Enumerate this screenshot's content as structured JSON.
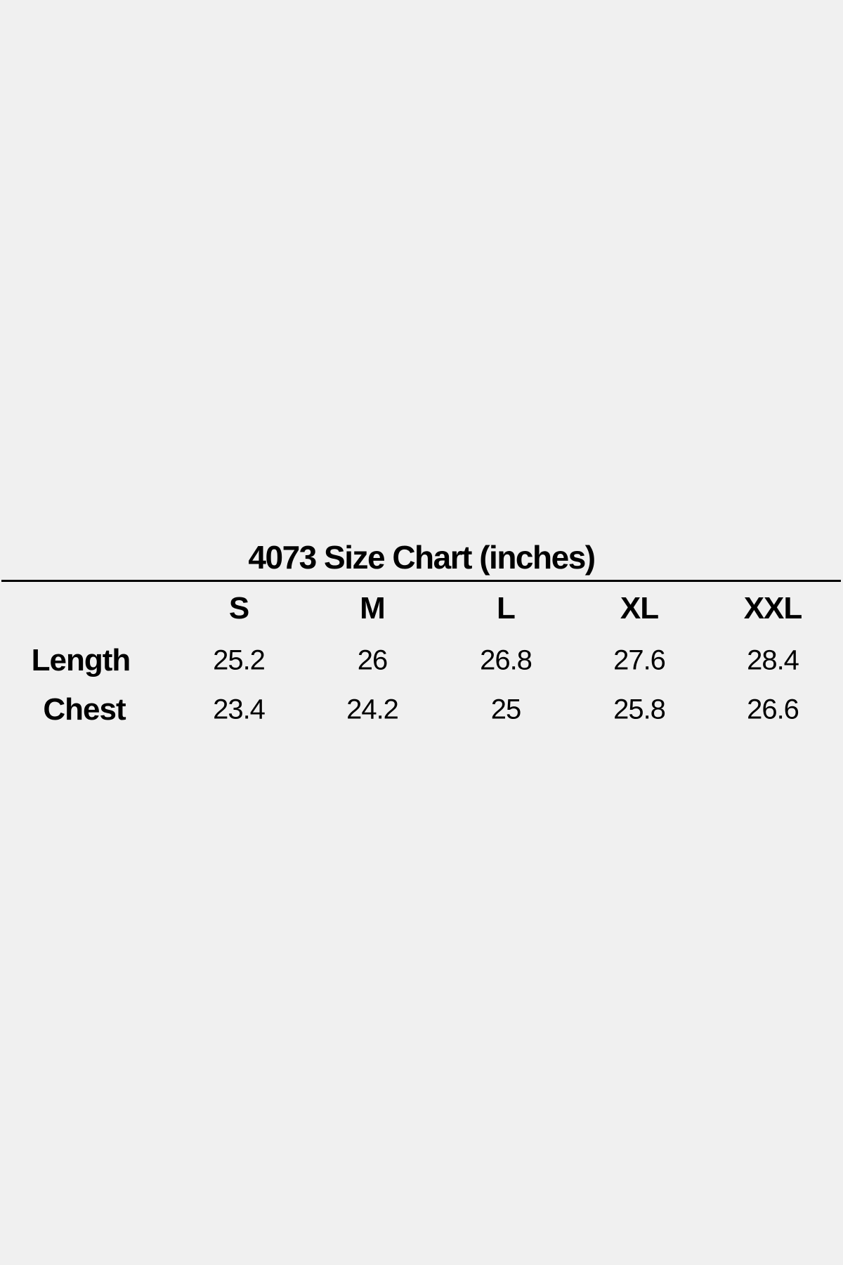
{
  "title": "4073 Size Chart (inches)",
  "sizes": [
    "S",
    "M",
    "L",
    "XL",
    "XXL"
  ],
  "rows": [
    {
      "label": "Length",
      "values": [
        "25.2",
        "26",
        "26.8",
        "27.6",
        "28.4"
      ]
    },
    {
      "label": "Chest",
      "values": [
        "23.4",
        "24.2",
        "25",
        "25.8",
        "26.6"
      ]
    }
  ]
}
